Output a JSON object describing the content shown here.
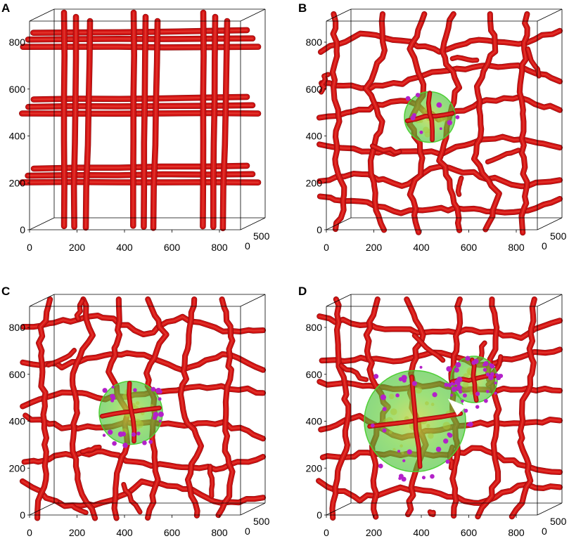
{
  "colors": {
    "vessel": "#d41414",
    "vessel_highlight": "#e84a3a",
    "vessel_shadow": "#8f0a0a",
    "tumor": "#4fcf35",
    "tumor_core": "#a9c83a",
    "cells": "#b321c9"
  },
  "panels": [
    {
      "letter": "A",
      "x_ticks": [
        "0",
        "200",
        "400",
        "600",
        "800"
      ],
      "y_ticks": [
        "0",
        "200",
        "400",
        "600",
        "800"
      ],
      "z_ticks": [
        "0",
        "500"
      ],
      "network": "regular",
      "tumors": [],
      "cell_clusters": 0,
      "arrowhead": false
    },
    {
      "letter": "B",
      "x_ticks": [
        "0",
        "200",
        "400",
        "600",
        "800"
      ],
      "y_ticks": [
        "0",
        "200",
        "400",
        "600",
        "800"
      ],
      "z_ticks": [
        "0",
        "500"
      ],
      "network": "irregular",
      "tumors": [
        {
          "cx": 0.49,
          "cy": 0.46,
          "r": 0.12
        }
      ],
      "cell_clusters": 10,
      "arrowhead": false
    },
    {
      "letter": "C",
      "x_ticks": [
        "0",
        "200",
        "400",
        "600",
        "800"
      ],
      "y_ticks": [
        "0",
        "200",
        "400",
        "600",
        "800"
      ],
      "z_ticks": [
        "0",
        "500"
      ],
      "network": "irregular",
      "tumors": [
        {
          "cx": 0.48,
          "cy": 0.51,
          "r": 0.15
        }
      ],
      "cell_clusters": 26,
      "arrowhead": false
    },
    {
      "letter": "D",
      "x_ticks": [
        "0",
        "200",
        "400",
        "600",
        "800"
      ],
      "y_ticks": [
        "0",
        "200",
        "400",
        "600",
        "800"
      ],
      "z_ticks": [
        "0",
        "500"
      ],
      "network": "irregular",
      "tumors": [
        {
          "cx": 0.42,
          "cy": 0.55,
          "r": 0.24
        },
        {
          "cx": 0.7,
          "cy": 0.35,
          "r": 0.11
        }
      ],
      "cell_clusters": 70,
      "arrowhead": true
    }
  ]
}
